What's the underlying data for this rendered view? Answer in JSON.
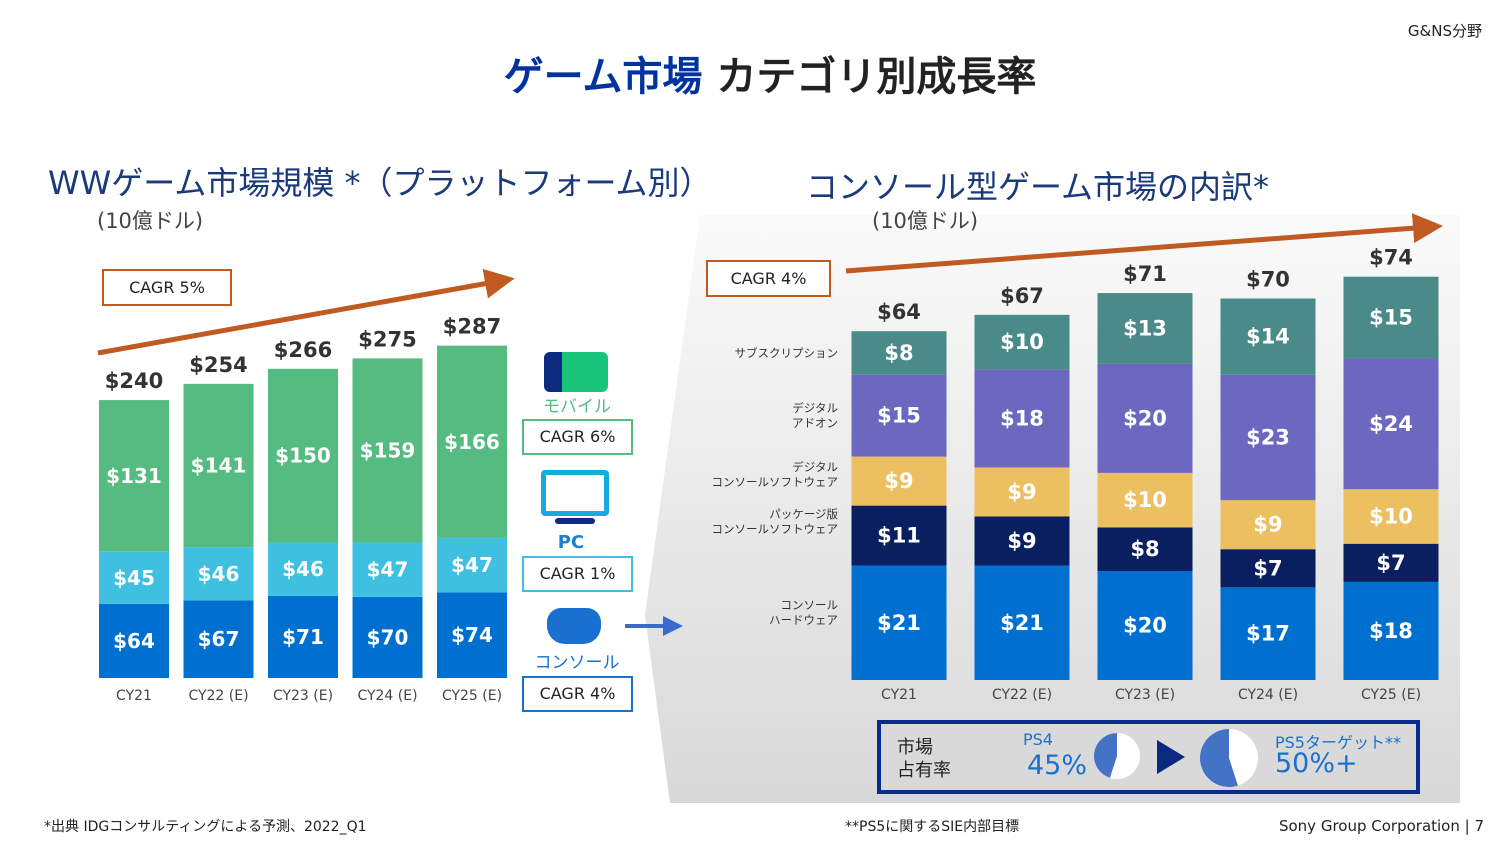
{
  "corner_label": "G&NS分野",
  "title_blue": "ゲーム市場",
  "title_black": "カテゴリ別成長率",
  "left": {
    "title": "WWゲーム市場規模 *（プラットフォーム別）",
    "unit": "(10億ドル)",
    "cagr": "CAGR 5%",
    "legend": [
      {
        "name": "モバイル",
        "cagr": "CAGR 6%",
        "color": "#55BB80",
        "icon": "smartphone-icon"
      },
      {
        "name": "PC",
        "cagr": "CAGR 1%",
        "color": "#40C0E0",
        "icon": "monitor-icon"
      },
      {
        "name": "コンソール",
        "cagr": "CAGR 4%",
        "color": "#0070D0",
        "icon": "gamepad-icon"
      }
    ]
  },
  "right": {
    "title": "コンソール型ゲーム市場の内訳*",
    "unit": "(10億ドル)",
    "cagr": "CAGR 4%",
    "share": {
      "label_line1": "市場",
      "label_line2": "占有率",
      "ps4_label": "PS4",
      "ps4_value": "45%",
      "ps4_share": 45,
      "ps5_label": "PS5ターゲット**",
      "ps5_value": "50%+",
      "ps5_share": 55
    }
  },
  "footer": {
    "left": "*出典 IDGコンサルティングによる予測、2022_Q1",
    "mid": "**PS5に関するSIE内部目標",
    "right": "Sony Group Corporation | 7"
  },
  "chart_data": [
    {
      "type": "bar",
      "stacked": true,
      "title": "WWゲーム市場規模（プラットフォーム別）",
      "ylabel": "10億ドル",
      "categories": [
        "CY21",
        "CY22 (E)",
        "CY23 (E)",
        "CY24 (E)",
        "CY25 (E)"
      ],
      "totals": [
        "$240",
        "$254",
        "$266",
        "$275",
        "$287"
      ],
      "series": [
        {
          "name": "コンソール",
          "color": "#0070D0",
          "values": [
            64,
            67,
            71,
            70,
            74
          ]
        },
        {
          "name": "PC",
          "color": "#40C0E0",
          "values": [
            45,
            46,
            46,
            47,
            47
          ]
        },
        {
          "name": "モバイル",
          "color": "#55BB80",
          "values": [
            131,
            141,
            150,
            159,
            166
          ]
        }
      ]
    },
    {
      "type": "bar",
      "stacked": true,
      "title": "コンソール型ゲーム市場の内訳",
      "ylabel": "10億ドル",
      "categories": [
        "CY21",
        "CY22 (E)",
        "CY23 (E)",
        "CY24 (E)",
        "CY25 (E)"
      ],
      "totals": [
        "$64",
        "$67",
        "$71",
        "$70",
        "$74"
      ],
      "series": [
        {
          "name": "コンソール\nハードウェア",
          "color": "#0070D0",
          "values": [
            21,
            21,
            20,
            17,
            18
          ]
        },
        {
          "name": "パッケージ版\nコンソールソフトウェア",
          "color": "#0A1F60",
          "values": [
            11,
            9,
            8,
            7,
            7
          ]
        },
        {
          "name": "デジタル\nコンソールソフトウェア",
          "color": "#ECC060",
          "values": [
            9,
            9,
            10,
            9,
            10
          ]
        },
        {
          "name": "デジタル\nアドオン",
          "color": "#6C68C0",
          "values": [
            15,
            18,
            20,
            23,
            24
          ]
        },
        {
          "name": "サブスクリプション",
          "color": "#4A8A88",
          "values": [
            8,
            10,
            13,
            14,
            15
          ]
        }
      ]
    }
  ]
}
